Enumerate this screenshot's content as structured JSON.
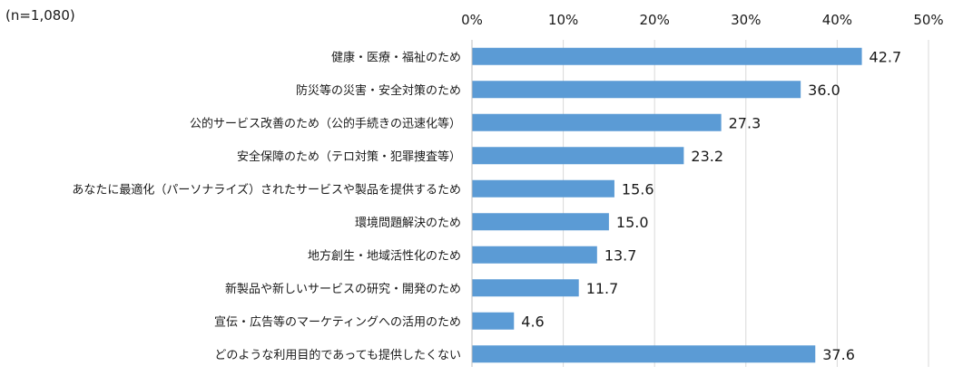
{
  "note": "(n=1,080)",
  "chart_data": {
    "type": "bar",
    "orientation": "horizontal",
    "categories": [
      "健康・医療・福祉のため",
      "防災等の災害・安全対策のため",
      "公的サービス改善のため（公的手続きの迅速化等）",
      "安全保障のため（テロ対策・犯罪捜査等）",
      "あなたに最適化（パーソナライズ）されたサービスや製品を提供するため",
      "環境問題解決のため",
      "地方創生・地域活性化のため",
      "新製品や新しいサービスの研究・開発のため",
      "宣伝・広告等のマーケティングへの活用のため",
      "どのような利用目的であっても提供したくない"
    ],
    "values": [
      42.7,
      36.0,
      27.3,
      23.2,
      15.6,
      15.0,
      13.7,
      11.7,
      4.6,
      37.6
    ],
    "value_labels": [
      "42.7",
      "36.0",
      "27.3",
      "23.2",
      "15.6",
      "15.0",
      "13.7",
      "11.7",
      "4.6",
      "37.6"
    ],
    "xlim": [
      0,
      50
    ],
    "ticks": [
      0,
      10,
      20,
      30,
      40,
      50
    ],
    "tick_labels": [
      "0%",
      "10%",
      "20%",
      "30%",
      "40%",
      "50%"
    ],
    "axis_position": "top",
    "grid": true,
    "bar_color": "#5B9BD5",
    "grid_color": "#d9d9d9"
  }
}
